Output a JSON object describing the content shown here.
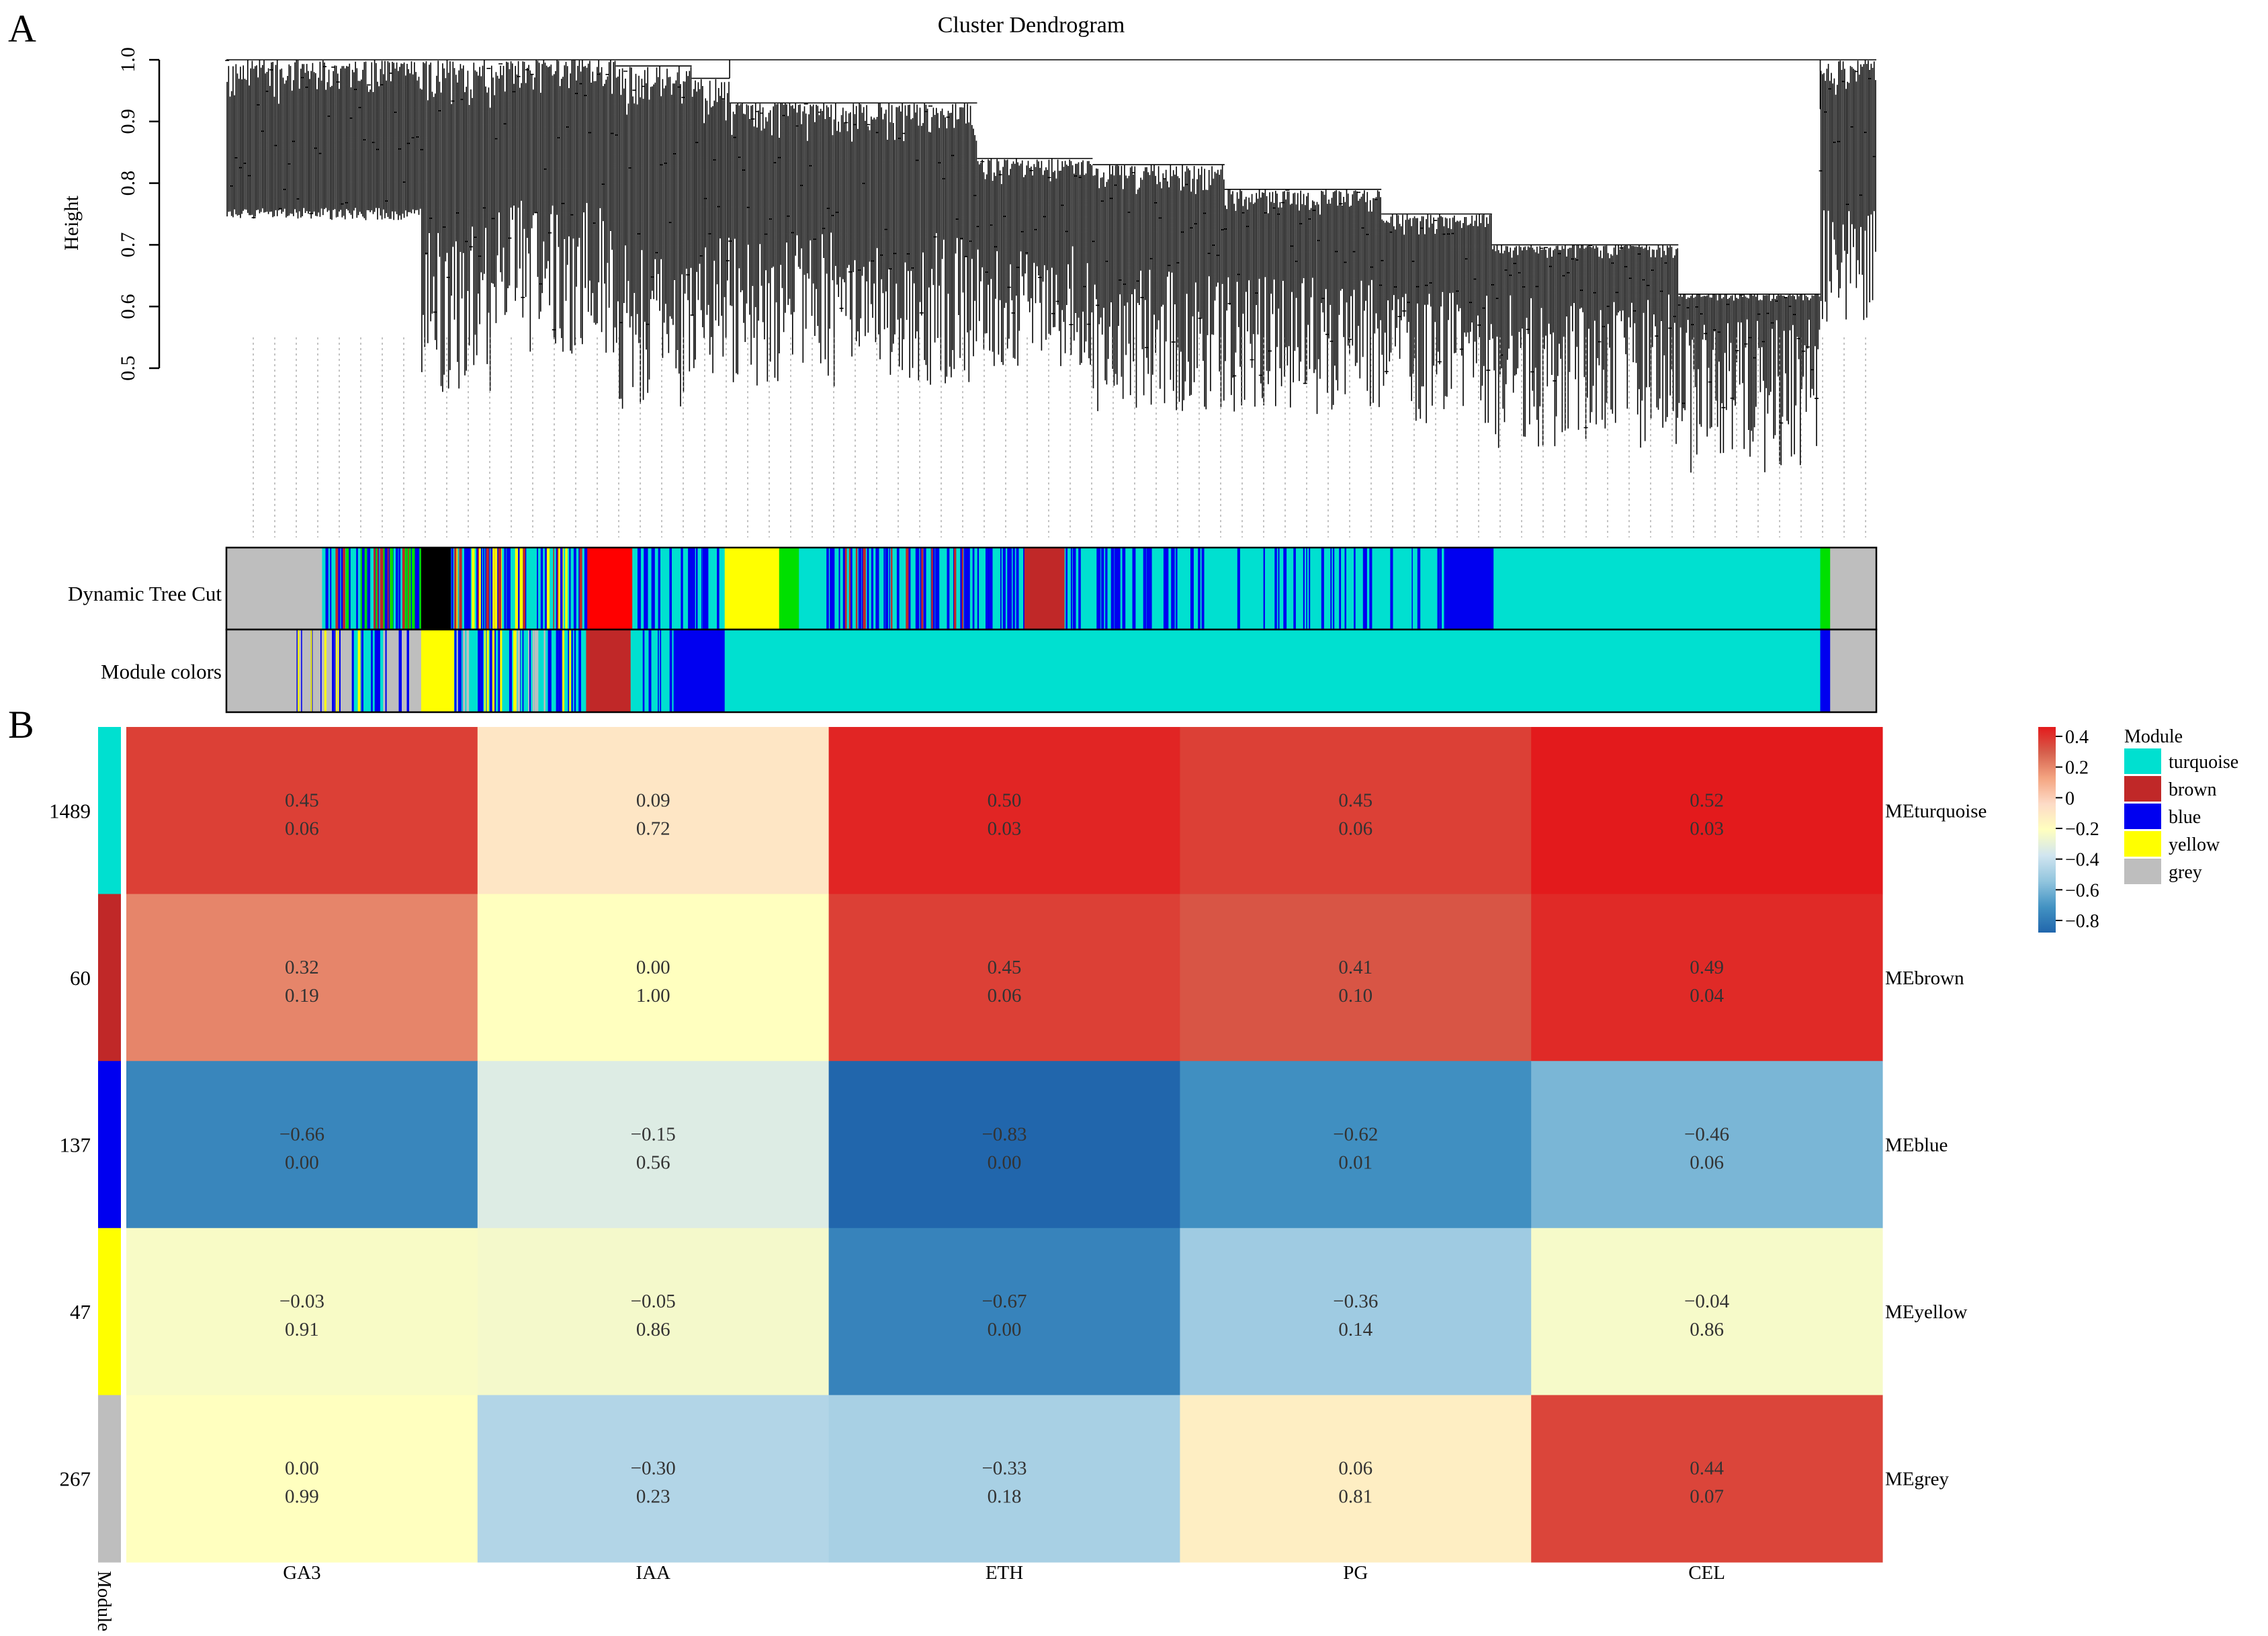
{
  "panel_a": {
    "label": "A",
    "title": "Cluster Dendrogram",
    "ylabel": "Height",
    "yticks": [
      "0.5",
      "0.6",
      "0.7",
      "0.8",
      "0.9",
      "1.0"
    ],
    "bar_labels": [
      "Dynamic Tree Cut",
      "Module colors"
    ]
  },
  "panel_b": {
    "label": "B",
    "module_axis_label": "Module",
    "legend_title": "Module",
    "legend_items": [
      {
        "name": "turquoise",
        "color": "#00E0D0"
      },
      {
        "name": "brown",
        "color": "#C02828"
      },
      {
        "name": "blue",
        "color": "#0000F0"
      },
      {
        "name": "yellow",
        "color": "#FFFF00"
      },
      {
        "name": "grey",
        "color": "#BEBEBE"
      }
    ],
    "colorbar_ticks": [
      "0.4",
      "0.2",
      "0",
      "−0.2",
      "−0.4",
      "−0.6",
      "−0.8"
    ]
  },
  "chart_data": [
    {
      "type": "dendrogram",
      "title": "Cluster Dendrogram",
      "xlabel": "",
      "ylabel": "Height",
      "ylim": [
        0.5,
        1.0
      ],
      "color_bars": [
        "Dynamic Tree Cut",
        "Module colors"
      ],
      "module_colors": [
        "grey",
        "yellow",
        "brown",
        "turquoise",
        "blue"
      ]
    },
    {
      "type": "heatmap",
      "title": "",
      "columns": [
        "GA3",
        "IAA",
        "ETH",
        "PG",
        "CEL"
      ],
      "rows": [
        {
          "name": "MEturquoise",
          "module": "turquoise",
          "color": "#00E0D0",
          "size": "1489",
          "corr": [
            "0.45",
            "0.09",
            "0.50",
            "0.45",
            "0.52"
          ],
          "p": [
            "0.06",
            "0.72",
            "0.03",
            "0.06",
            "0.03"
          ]
        },
        {
          "name": "MEbrown",
          "module": "brown",
          "color": "#C02828",
          "size": "60",
          "corr": [
            "0.32",
            "0.00",
            "0.45",
            "0.41",
            "0.49"
          ],
          "p": [
            "0.19",
            "1.00",
            "0.06",
            "0.10",
            "0.04"
          ]
        },
        {
          "name": "MEblue",
          "module": "blue",
          "color": "#0000F0",
          "size": "137",
          "corr": [
            "−0.66",
            "−0.15",
            "−0.83",
            "−0.62",
            "−0.46"
          ],
          "p": [
            "0.00",
            "0.56",
            "0.00",
            "0.01",
            "0.06"
          ]
        },
        {
          "name": "MEyellow",
          "module": "yellow",
          "color": "#FFFF00",
          "size": "47",
          "corr": [
            "−0.03",
            "−0.05",
            "−0.67",
            "−0.36",
            "−0.04"
          ],
          "p": [
            "0.91",
            "0.86",
            "0.00",
            "0.14",
            "0.86"
          ]
        },
        {
          "name": "MEgrey",
          "module": "grey",
          "color": "#BEBEBE",
          "size": "267",
          "corr": [
            "0.00",
            "−0.30",
            "−0.33",
            "0.06",
            "0.44"
          ],
          "p": [
            "0.99",
            "0.23",
            "0.18",
            "0.81",
            "0.07"
          ]
        }
      ],
      "colorbar_range": [
        -0.8,
        0.4
      ],
      "colorbar_colors": [
        "#2166AC",
        "#4393C3",
        "#92C5DE",
        "#D1E5F0",
        "#FFFFBF",
        "#FDDBC7",
        "#F4A582",
        "#D6604D",
        "#E31A1C"
      ]
    }
  ]
}
